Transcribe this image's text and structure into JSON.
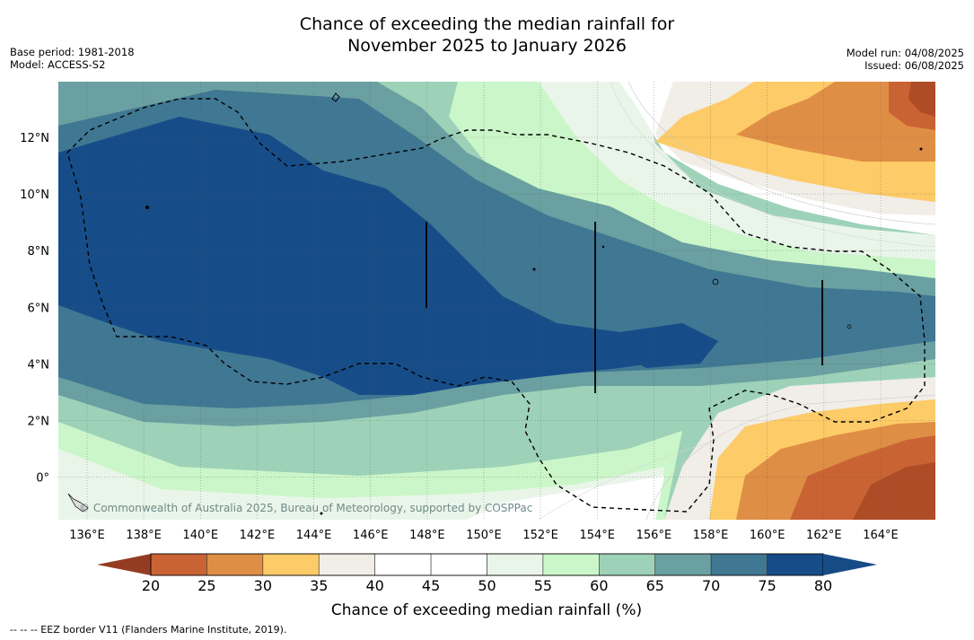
{
  "title": {
    "line1": "Chance of exceeding the median rainfall for",
    "line2": "November 2025 to January 2026"
  },
  "meta_left": {
    "base_period": "Base period: 1981-2018",
    "model": "Model: ACCESS-S2"
  },
  "meta_right": {
    "model_run": "Model run: 04/08/2025",
    "issued": "Issued: 06/08/2025"
  },
  "map": {
    "lon_labels": [
      "136°E",
      "138°E",
      "140°E",
      "142°E",
      "144°E",
      "146°E",
      "148°E",
      "150°E",
      "152°E",
      "154°E",
      "156°E",
      "158°E",
      "160°E",
      "162°E",
      "164°E"
    ],
    "lat_labels": [
      "12°N",
      "10°N",
      "8°N",
      "6°N",
      "4°N",
      "2°N",
      "0°"
    ],
    "copyright": "© Commonwealth of Australia 2025, Bureau of Meteorology, supported by COSPPac"
  },
  "colorbar": {
    "ticks": [
      "20",
      "25",
      "30",
      "35",
      "40",
      "45",
      "50",
      "55",
      "60",
      "65",
      "70",
      "75",
      "80"
    ],
    "colors": [
      "#ae4c27",
      "#c96334",
      "#df8e45",
      "#fdcb67",
      "#f1ede7",
      "#ffffff",
      "#ffffff",
      "#eaf5e9",
      "#cbf6c9",
      "#9dd2b8",
      "#6aa0a1",
      "#407792",
      "#164d89"
    ],
    "under_color": "#943c22",
    "over_color": "#174b86",
    "title": "Chance of exceeding median rainfall (%)"
  },
  "footnote": "--  --  -- EEZ border V11 (Flanders Marine Institute, 2019)."
}
